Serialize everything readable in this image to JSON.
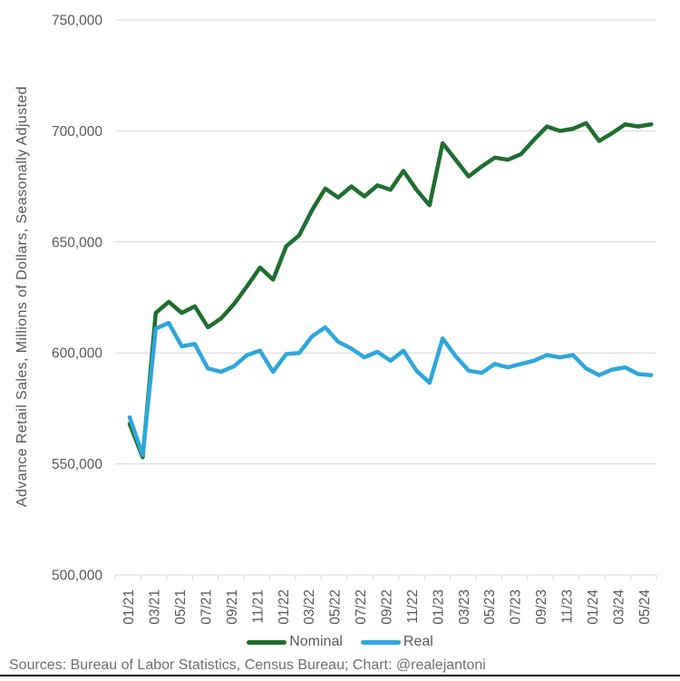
{
  "footer": {
    "text": "Sources: Bureau of Labor Statistics, Census Bureau; Chart: @realejantoni"
  },
  "legend": {
    "items": [
      {
        "label": "Nominal",
        "color": "#1f6e2f"
      },
      {
        "label": "Real",
        "color": "#2ea7db"
      }
    ]
  },
  "chart_data": {
    "type": "line",
    "title": "",
    "xlabel": "",
    "ylabel": "Advance Retail Sales, Millions of Dollars, Seasonally Adjusted",
    "ylim": [
      500000,
      750000
    ],
    "y_tick_step": 50000,
    "y_tick_labels": [
      "750,000",
      "700,000",
      "650,000",
      "600,000",
      "550,000",
      "500,000"
    ],
    "grid": "horizontal",
    "grid_color": "#d9d9d9",
    "axis_text_color": "#595959",
    "legend_position": "bottom",
    "x_tick_labels": [
      "01/21",
      "03/21",
      "05/21",
      "07/21",
      "09/21",
      "11/21",
      "01/22",
      "03/22",
      "05/22",
      "07/22",
      "09/22",
      "11/22",
      "01/23",
      "03/23",
      "05/23",
      "07/23",
      "09/23",
      "11/23",
      "01/24",
      "03/24",
      "05/24"
    ],
    "x": [
      "01/21",
      "02/21",
      "03/21",
      "04/21",
      "05/21",
      "06/21",
      "07/21",
      "08/21",
      "09/21",
      "10/21",
      "11/21",
      "12/21",
      "01/22",
      "02/22",
      "03/22",
      "04/22",
      "05/22",
      "06/22",
      "07/22",
      "08/22",
      "09/22",
      "10/22",
      "11/22",
      "12/22",
      "01/23",
      "02/23",
      "03/23",
      "04/23",
      "05/23",
      "06/23",
      "07/23",
      "08/23",
      "09/23",
      "10/23",
      "11/23",
      "12/23",
      "01/24",
      "02/24",
      "03/24",
      "04/24",
      "05/24"
    ],
    "series": [
      {
        "name": "Nominal",
        "color": "#1f6e2f",
        "values": [
          568000,
          553000,
          618000,
          623000,
          618000,
          621000,
          611500,
          615500,
          622000,
          630000,
          638500,
          633000,
          648000,
          653000,
          664500,
          674000,
          670000,
          675000,
          670500,
          675500,
          673500,
          682000,
          673500,
          666500,
          694500,
          687000,
          679500,
          684000,
          688000,
          687000,
          689500,
          696000,
          702000,
          700000,
          701000,
          703500,
          695500,
          699000,
          703000,
          702000,
          703000
        ]
      },
      {
        "name": "Real",
        "color": "#2ea7db",
        "values": [
          571000,
          554000,
          611000,
          613500,
          603000,
          604000,
          593000,
          591500,
          594000,
          599000,
          601000,
          591500,
          599500,
          600000,
          607500,
          611500,
          605000,
          602000,
          598000,
          600500,
          596500,
          601000,
          592000,
          586500,
          606500,
          598500,
          592000,
          591000,
          595000,
          593500,
          595000,
          596500,
          599000,
          598000,
          599000,
          593000,
          590000,
          592500,
          593500,
          590500,
          590000
        ]
      }
    ]
  }
}
